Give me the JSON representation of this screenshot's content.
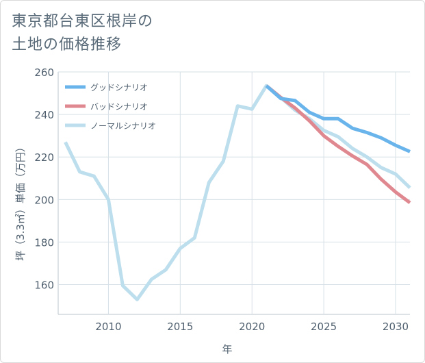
{
  "title_lines": [
    "東京都台東区根岸の",
    "土地の価格推移"
  ],
  "chart_data": {
    "type": "line",
    "title": "東京都台東区根岸の土地の価格推移",
    "xlabel": "年",
    "ylabel": "坪（3.3㎡）単価（万円）",
    "xlim": [
      2006.5,
      2031
    ],
    "ylim": [
      146,
      260
    ],
    "xticks": [
      2010,
      2015,
      2020,
      2025,
      2030
    ],
    "yticks": [
      160,
      180,
      200,
      220,
      240,
      260
    ],
    "grid": true,
    "legend_position": "top-left",
    "series": [
      {
        "name": "グッドシナリオ",
        "color": "#6ab4ec",
        "x": [
          2021,
          2022,
          2023,
          2024,
          2025,
          2026,
          2027,
          2028,
          2029,
          2030,
          2031
        ],
        "values": [
          253.5,
          247.5,
          246.5,
          241,
          238,
          238,
          233.5,
          231.5,
          229,
          225.5,
          222.5
        ]
      },
      {
        "name": "バッドシナリオ",
        "color": "#e08890",
        "x": [
          2021,
          2022,
          2023,
          2024,
          2025,
          2026,
          2027,
          2028,
          2029,
          2030,
          2031
        ],
        "values": [
          253.5,
          248,
          243,
          237,
          230,
          225,
          220.5,
          216.5,
          209.5,
          203.5,
          198.5
        ]
      },
      {
        "name": "ノーマルシナリオ",
        "color": "#bcdeed",
        "x": [
          2007,
          2008,
          2009,
          2010,
          2011,
          2012,
          2013,
          2014,
          2015,
          2016,
          2017,
          2018,
          2019,
          2020,
          2021,
          2022,
          2023,
          2024,
          2025,
          2026,
          2027,
          2028,
          2029,
          2030,
          2031
        ],
        "values": [
          227,
          213,
          211,
          200,
          159.5,
          153,
          162.5,
          167,
          177,
          182,
          208,
          218,
          244,
          242.5,
          253.5,
          248,
          242,
          238,
          232.5,
          229.5,
          224,
          220,
          215,
          212,
          205.5
        ]
      }
    ]
  }
}
